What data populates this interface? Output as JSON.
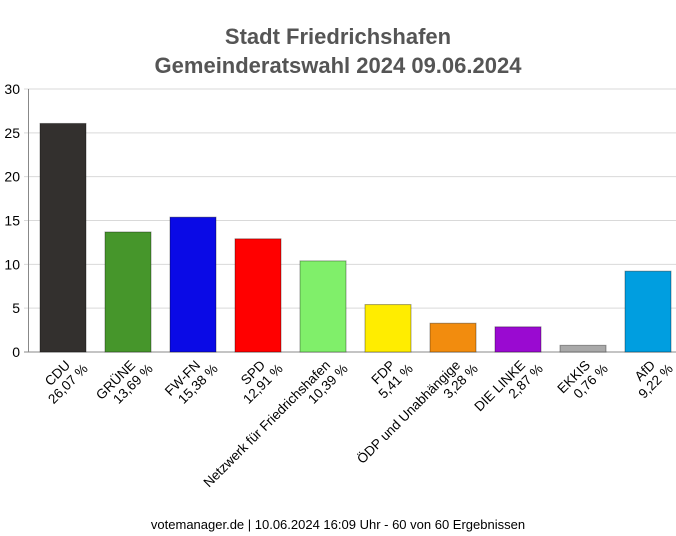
{
  "chart_data": {
    "type": "bar",
    "title": "Stadt Friedrichshafen",
    "subtitle": "Gemeinderatswahl 2024 09.06.2024",
    "categories": [
      "CDU",
      "GRÜNE",
      "FW-FN",
      "SPD",
      "Netzwerk für Friedrichshafen",
      "FDP",
      "ÖDP und Unabhängige",
      "DIE LINKE",
      "EKKIS",
      "AfD"
    ],
    "value_labels": [
      "26,07 %",
      "13,69 %",
      "15,38 %",
      "12,91 %",
      "10,39 %",
      "5,41 %",
      "3,28 %",
      "2,87 %",
      "0,76 %",
      "9,22 %"
    ],
    "values": [
      26.07,
      13.69,
      15.38,
      12.91,
      10.39,
      5.41,
      3.28,
      2.87,
      0.76,
      9.22
    ],
    "colors": [
      "#33302e",
      "#46962b",
      "#0a0ae6",
      "#ff0000",
      "#80ef6a",
      "#ffed00",
      "#f28c0e",
      "#9a0ad1",
      "#a9a9a9",
      "#009ee0"
    ],
    "ylim": [
      0,
      30
    ],
    "yticks": [
      "0",
      "5",
      "10",
      "15",
      "20",
      "25",
      "30"
    ],
    "xlabel": "",
    "ylabel": "",
    "grid": true
  },
  "footer": "votemanager.de | 10.06.2024 16:09 Uhr - 60 von 60 Ergebnissen"
}
